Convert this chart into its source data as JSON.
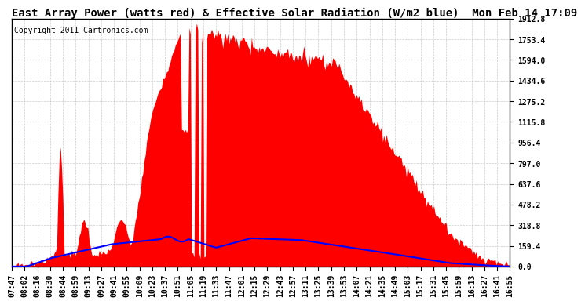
{
  "title": "East Array Power (watts red) & Effective Solar Radiation (W/m2 blue)  Mon Feb 14 17:09",
  "copyright_text": "Copyright 2011 Cartronics.com",
  "ylabel_right_values": [
    1912.8,
    1753.4,
    1594.0,
    1434.6,
    1275.2,
    1115.8,
    956.4,
    797.0,
    637.6,
    478.2,
    318.8,
    159.4,
    0.0
  ],
  "ymax": 1912.8,
  "ymin": 0.0,
  "x_tick_labels": [
    "07:47",
    "08:02",
    "08:16",
    "08:30",
    "08:44",
    "08:59",
    "09:13",
    "09:27",
    "09:41",
    "09:55",
    "10:09",
    "10:23",
    "10:37",
    "10:51",
    "11:05",
    "11:19",
    "11:33",
    "11:47",
    "12:01",
    "12:15",
    "12:29",
    "12:43",
    "12:57",
    "13:11",
    "13:25",
    "13:39",
    "13:53",
    "14:07",
    "14:21",
    "14:35",
    "14:49",
    "15:03",
    "15:17",
    "15:31",
    "15:45",
    "15:59",
    "16:13",
    "16:27",
    "16:41",
    "16:55"
  ],
  "bg_color": "#ffffff",
  "grid_color": "#cccccc",
  "red_fill_color": "#ff0000",
  "blue_line_color": "#0000ff",
  "title_fontsize": 10,
  "tick_fontsize": 7,
  "copyright_fontsize": 7,
  "rad_scale": 0.345
}
